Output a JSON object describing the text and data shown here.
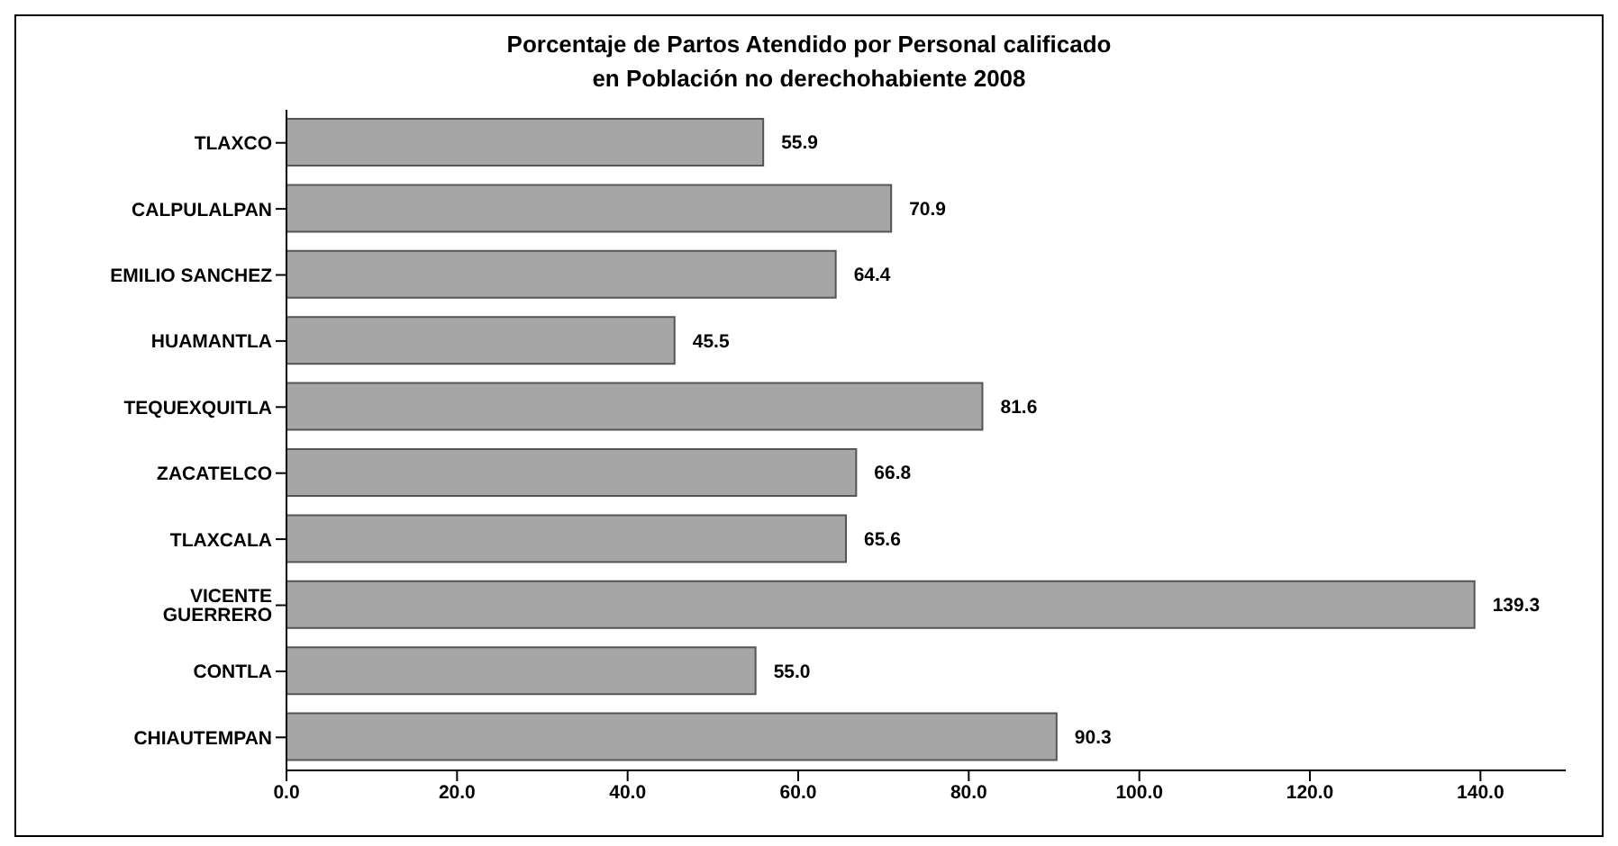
{
  "chart_data": {
    "type": "bar",
    "orientation": "horizontal",
    "title": "Porcentaje de Partos Atendido por Personal calificado\nen Población no derechohabiente 2008",
    "categories": [
      "TLAXCO",
      "CALPULALPAN",
      "EMILIO SANCHEZ",
      "HUAMANTLA",
      "TEQUEXQUITLA",
      "ZACATELCO",
      "TLAXCALA",
      "VICENTE GUERRERO",
      "CONTLA",
      "CHIAUTEMPAN"
    ],
    "values": [
      55.9,
      70.9,
      64.4,
      45.5,
      81.6,
      66.8,
      65.6,
      139.3,
      55.0,
      90.3
    ],
    "value_labels": [
      "55.9",
      "70.9",
      "64.4",
      "45.5",
      "81.6",
      "66.8",
      "65.6",
      "139.3",
      "55.0",
      "90.3"
    ],
    "color": "#a6a6a6",
    "xlim": [
      0,
      150
    ],
    "xticks": [
      {
        "value": 0,
        "label": "0.0"
      },
      {
        "value": 20,
        "label": "20.0"
      },
      {
        "value": 40,
        "label": "40.0"
      },
      {
        "value": 60,
        "label": "60.0"
      },
      {
        "value": 80,
        "label": "80.0"
      },
      {
        "value": 100,
        "label": "100.0"
      },
      {
        "value": 120,
        "label": "120.0"
      },
      {
        "value": 140,
        "label": "140.0"
      }
    ],
    "grid": false
  }
}
